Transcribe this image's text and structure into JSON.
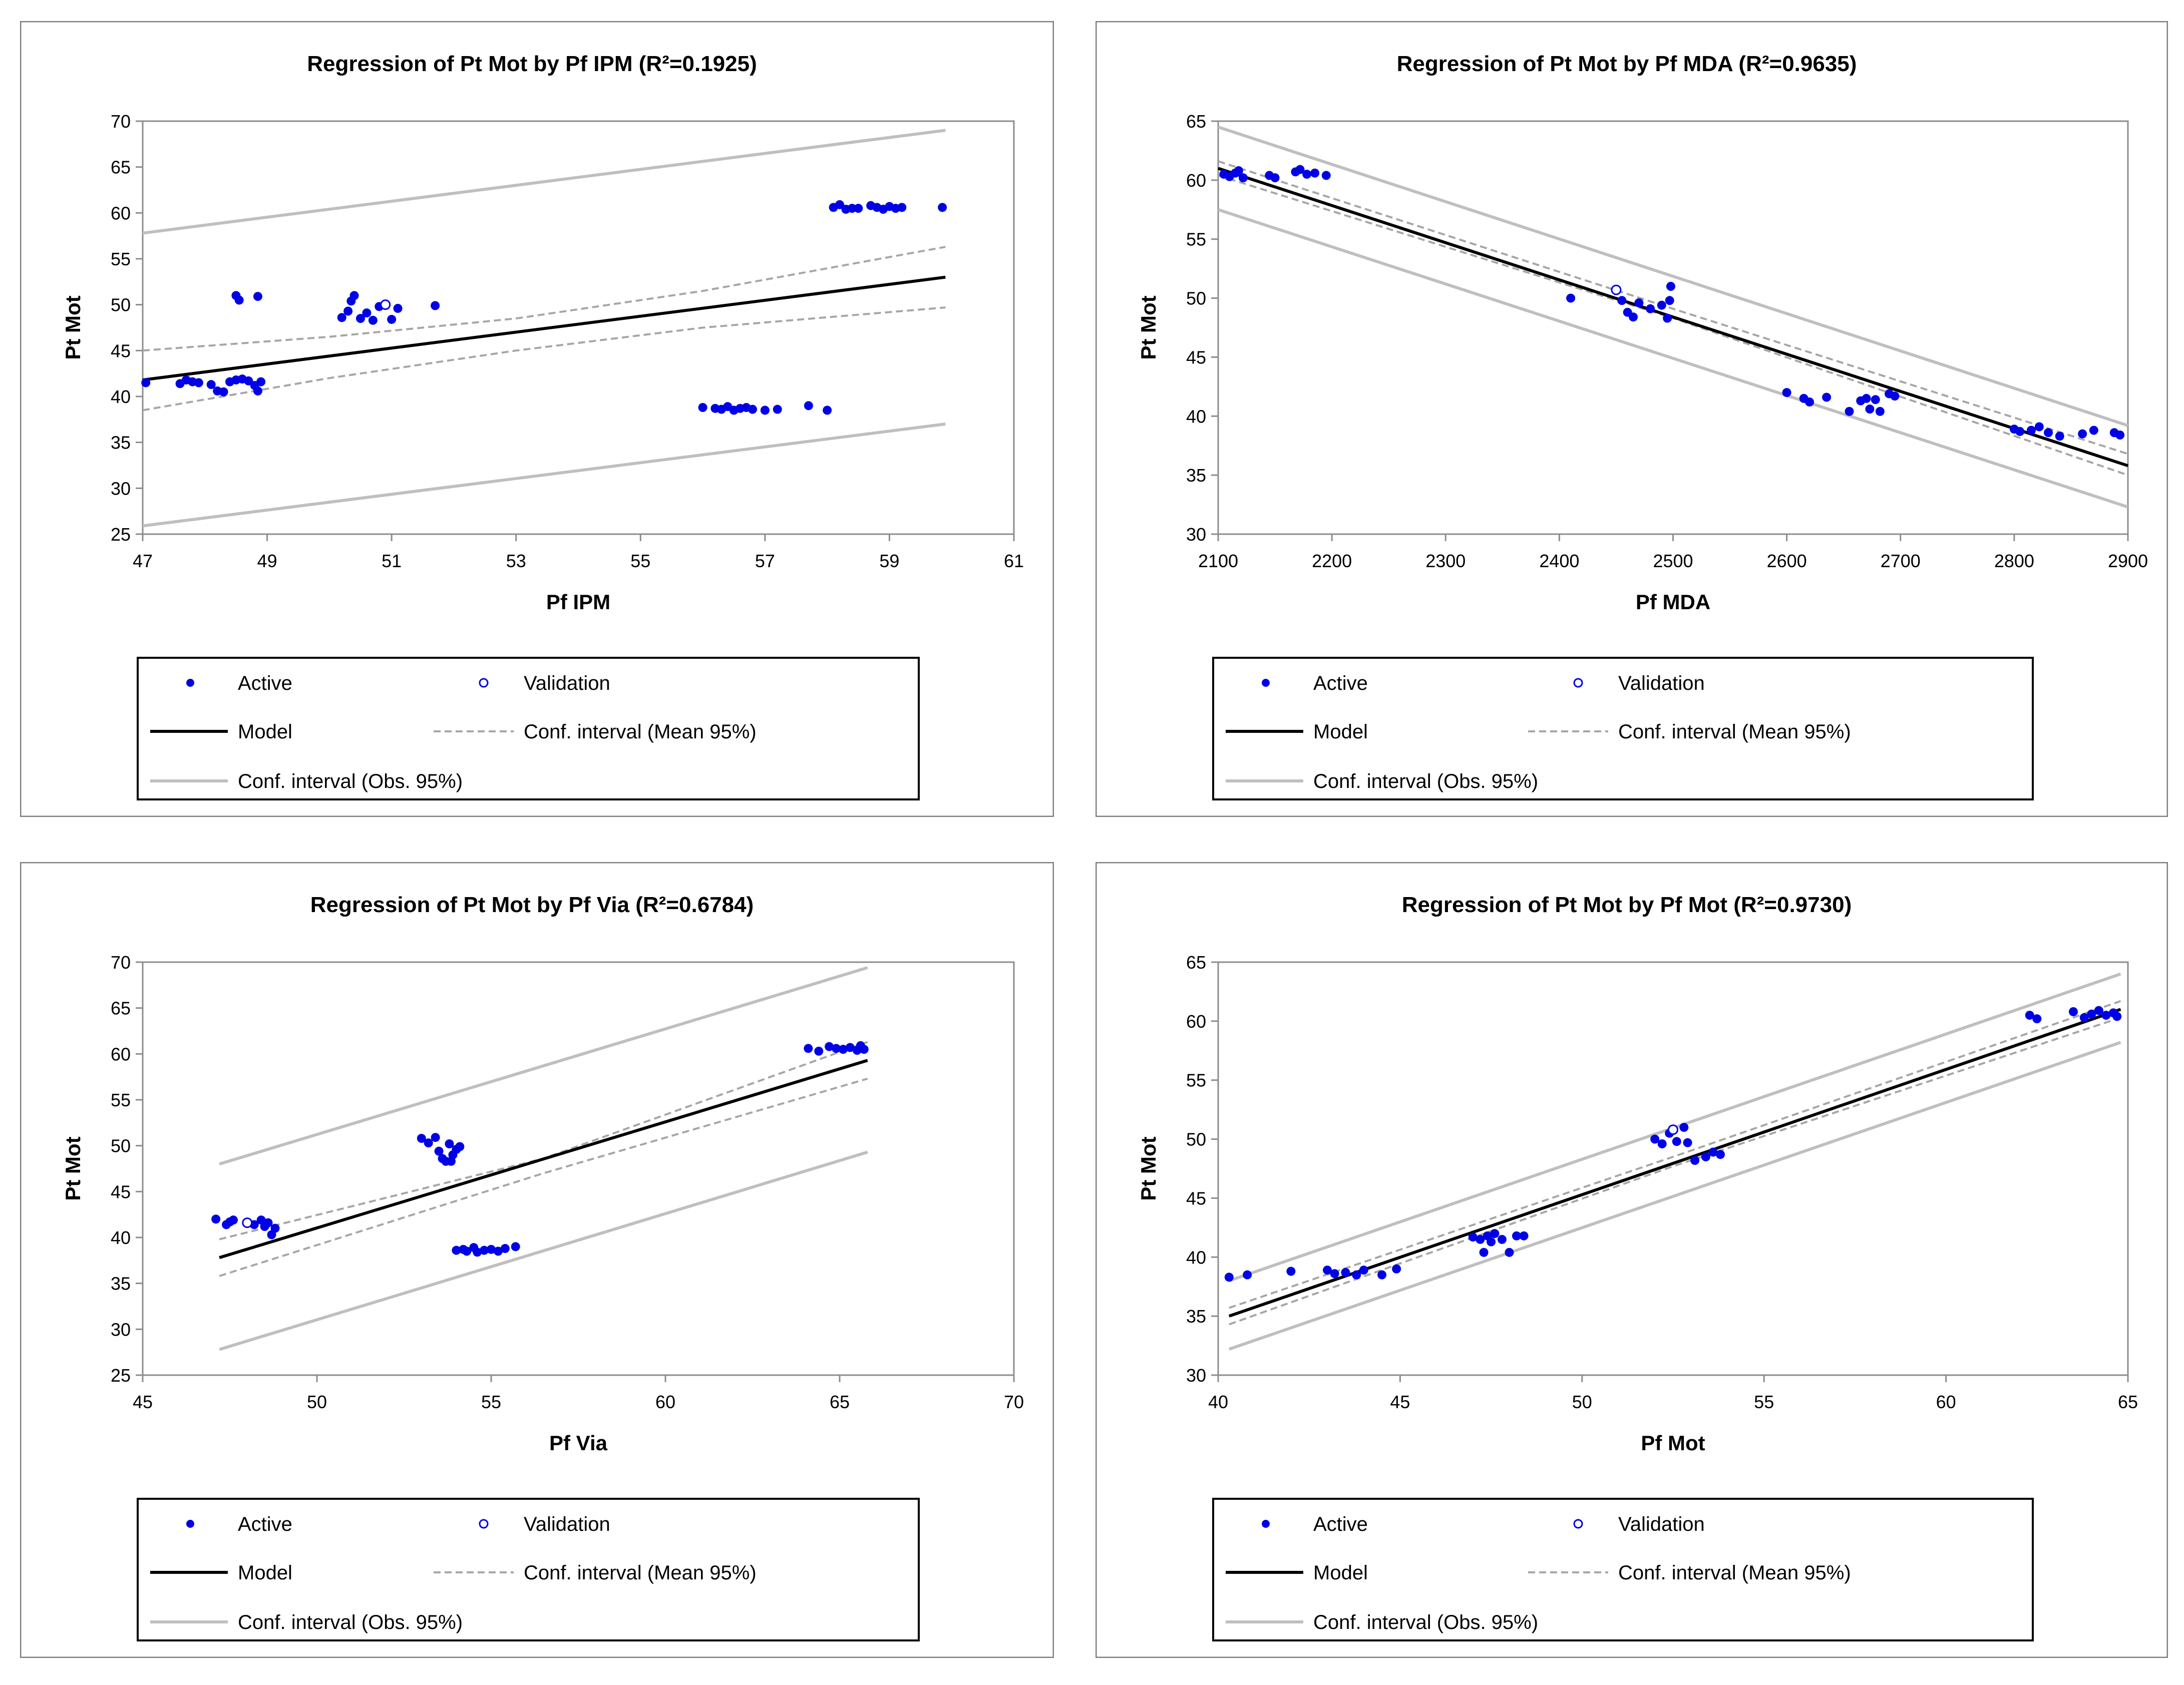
{
  "legend_labels": {
    "active": "Active",
    "validation": "Validation",
    "model": "Model",
    "conf_mean": "Conf. interval (Mean 95%)",
    "conf_obs": "Conf. interval (Obs. 95%)"
  },
  "colors": {
    "active": "#0000e6",
    "model": "#000000",
    "conf_mean": "#a6a6a6",
    "conf_obs": "#bfbfbf",
    "border": "#7f7f7f"
  },
  "chart_data": [
    {
      "type": "scatter",
      "title": "Regression of Pt Mot by Pf IPM (R²=0.1925)",
      "xlabel": "Pf IPM",
      "ylabel": "Pt Mot",
      "xlim": [
        47,
        61
      ],
      "ylim": [
        25,
        70
      ],
      "xticks": [
        47,
        49,
        51,
        53,
        55,
        57,
        59,
        61
      ],
      "yticks": [
        25,
        30,
        35,
        40,
        45,
        50,
        55,
        60,
        65,
        70
      ],
      "active": [
        [
          47.05,
          41.5
        ],
        [
          47.6,
          41.4
        ],
        [
          47.7,
          41.8
        ],
        [
          47.8,
          41.6
        ],
        [
          47.9,
          41.5
        ],
        [
          48.1,
          41.3
        ],
        [
          48.2,
          40.6
        ],
        [
          48.3,
          40.5
        ],
        [
          48.4,
          41.6
        ],
        [
          48.5,
          41.8
        ],
        [
          48.6,
          41.9
        ],
        [
          48.7,
          41.7
        ],
        [
          48.8,
          41.2
        ],
        [
          48.9,
          41.6
        ],
        [
          48.85,
          40.6
        ],
        [
          48.5,
          51.0
        ],
        [
          48.55,
          50.5
        ],
        [
          48.85,
          50.9
        ],
        [
          50.2,
          48.6
        ],
        [
          50.3,
          49.3
        ],
        [
          50.35,
          50.4
        ],
        [
          50.4,
          51.0
        ],
        [
          50.5,
          48.5
        ],
        [
          50.6,
          49.1
        ],
        [
          50.7,
          48.3
        ],
        [
          50.8,
          49.8
        ],
        [
          51.0,
          48.4
        ],
        [
          51.1,
          49.6
        ],
        [
          51.7,
          49.9
        ],
        [
          56.0,
          38.8
        ],
        [
          56.2,
          38.7
        ],
        [
          56.3,
          38.6
        ],
        [
          56.4,
          38.9
        ],
        [
          56.5,
          38.5
        ],
        [
          56.6,
          38.7
        ],
        [
          56.7,
          38.8
        ],
        [
          56.8,
          38.6
        ],
        [
          57.0,
          38.5
        ],
        [
          57.2,
          38.6
        ],
        [
          57.7,
          39.0
        ],
        [
          58.0,
          38.5
        ],
        [
          58.1,
          60.6
        ],
        [
          58.2,
          60.9
        ],
        [
          58.3,
          60.4
        ],
        [
          58.4,
          60.5
        ],
        [
          58.5,
          60.5
        ],
        [
          58.7,
          60.8
        ],
        [
          58.8,
          60.6
        ],
        [
          58.9,
          60.4
        ],
        [
          59.0,
          60.7
        ],
        [
          59.1,
          60.5
        ],
        [
          59.2,
          60.6
        ],
        [
          59.85,
          60.6
        ]
      ],
      "validation": [
        [
          50.9,
          50.0
        ]
      ],
      "model": [
        [
          47.0,
          41.8
        ],
        [
          59.9,
          53.0
        ]
      ],
      "conf_mean_upper": [
        [
          47.0,
          45.0
        ],
        [
          50.0,
          46.5
        ],
        [
          53.0,
          48.5
        ],
        [
          56.0,
          51.5
        ],
        [
          59.9,
          56.3
        ]
      ],
      "conf_mean_lower": [
        [
          47.0,
          38.5
        ],
        [
          50.0,
          42.0
        ],
        [
          53.0,
          45.0
        ],
        [
          56.0,
          47.5
        ],
        [
          59.9,
          49.7
        ]
      ],
      "conf_obs_upper": [
        [
          47.0,
          57.8
        ],
        [
          59.9,
          69.0
        ]
      ],
      "conf_obs_lower": [
        [
          47.0,
          25.9
        ],
        [
          59.9,
          37.0
        ]
      ]
    },
    {
      "type": "scatter",
      "title": "Regression of Pt Mot by Pf MDA (R²=0.9635)",
      "xlabel": "Pf MDA",
      "ylabel": "Pt Mot",
      "xlim": [
        2100,
        2900
      ],
      "ylim": [
        30,
        65
      ],
      "xticks": [
        2100,
        2200,
        2300,
        2400,
        2500,
        2600,
        2700,
        2800,
        2900
      ],
      "yticks": [
        30,
        35,
        40,
        45,
        50,
        55,
        60,
        65
      ],
      "active": [
        [
          2105,
          60.5
        ],
        [
          2110,
          60.3
        ],
        [
          2115,
          60.6
        ],
        [
          2118,
          60.8
        ],
        [
          2122,
          60.2
        ],
        [
          2145,
          60.4
        ],
        [
          2150,
          60.2
        ],
        [
          2168,
          60.7
        ],
        [
          2172,
          60.9
        ],
        [
          2178,
          60.5
        ],
        [
          2185,
          60.6
        ],
        [
          2195,
          60.4
        ],
        [
          2410,
          50.0
        ],
        [
          2455,
          49.8
        ],
        [
          2460,
          48.8
        ],
        [
          2465,
          48.4
        ],
        [
          2470,
          49.6
        ],
        [
          2480,
          49.1
        ],
        [
          2490,
          49.4
        ],
        [
          2495,
          48.3
        ],
        [
          2497,
          49.8
        ],
        [
          2498,
          51.0
        ],
        [
          2600,
          42.0
        ],
        [
          2615,
          41.5
        ],
        [
          2620,
          41.2
        ],
        [
          2635,
          41.6
        ],
        [
          2655,
          40.4
        ],
        [
          2665,
          41.3
        ],
        [
          2670,
          41.5
        ],
        [
          2673,
          40.6
        ],
        [
          2678,
          41.4
        ],
        [
          2682,
          40.4
        ],
        [
          2690,
          41.9
        ],
        [
          2695,
          41.7
        ],
        [
          2800,
          38.9
        ],
        [
          2805,
          38.7
        ],
        [
          2815,
          38.8
        ],
        [
          2822,
          39.1
        ],
        [
          2830,
          38.6
        ],
        [
          2840,
          38.3
        ],
        [
          2860,
          38.5
        ],
        [
          2870,
          38.8
        ],
        [
          2888,
          38.6
        ],
        [
          2893,
          38.4
        ]
      ],
      "validation": [
        [
          2450,
          50.7
        ]
      ],
      "model": [
        [
          2100,
          61.0
        ],
        [
          2900,
          35.8
        ]
      ],
      "conf_mean_upper": [
        [
          2100,
          61.6
        ],
        [
          2500,
          49.1
        ],
        [
          2900,
          36.8
        ]
      ],
      "conf_mean_lower": [
        [
          2100,
          60.4
        ],
        [
          2500,
          48.3
        ],
        [
          2900,
          35.0
        ]
      ],
      "conf_obs_upper": [
        [
          2100,
          64.5
        ],
        [
          2900,
          39.2
        ]
      ],
      "conf_obs_lower": [
        [
          2100,
          57.5
        ],
        [
          2900,
          32.3
        ]
      ]
    },
    {
      "type": "scatter",
      "title": "Regression of Pt Mot by Pf Via (R²=0.6784)",
      "xlabel": "Pf Via",
      "ylabel": "Pt Mot",
      "xlim": [
        45,
        70
      ],
      "ylim": [
        25,
        70
      ],
      "xticks": [
        45,
        50,
        55,
        60,
        65,
        70
      ],
      "yticks": [
        25,
        30,
        35,
        40,
        45,
        50,
        55,
        60,
        65,
        70
      ],
      "active": [
        [
          47.1,
          42.0
        ],
        [
          47.4,
          41.4
        ],
        [
          47.5,
          41.7
        ],
        [
          47.6,
          41.9
        ],
        [
          48.0,
          41.6
        ],
        [
          48.2,
          41.4
        ],
        [
          48.4,
          41.9
        ],
        [
          48.5,
          41.2
        ],
        [
          48.6,
          41.6
        ],
        [
          48.7,
          40.3
        ],
        [
          48.8,
          41.0
        ],
        [
          53.0,
          50.8
        ],
        [
          53.2,
          50.3
        ],
        [
          53.4,
          50.9
        ],
        [
          53.5,
          49.4
        ],
        [
          53.6,
          48.6
        ],
        [
          53.7,
          48.3
        ],
        [
          53.8,
          50.2
        ],
        [
          53.9,
          49.0
        ],
        [
          54.0,
          49.6
        ],
        [
          54.1,
          49.9
        ],
        [
          53.85,
          48.3
        ],
        [
          54.0,
          38.6
        ],
        [
          54.2,
          38.7
        ],
        [
          54.3,
          38.5
        ],
        [
          54.5,
          38.9
        ],
        [
          54.6,
          38.4
        ],
        [
          54.8,
          38.6
        ],
        [
          55.0,
          38.7
        ],
        [
          55.2,
          38.5
        ],
        [
          55.4,
          38.8
        ],
        [
          55.7,
          39.0
        ],
        [
          64.1,
          60.6
        ],
        [
          64.4,
          60.3
        ],
        [
          64.7,
          60.8
        ],
        [
          64.9,
          60.6
        ],
        [
          65.1,
          60.5
        ],
        [
          65.3,
          60.7
        ],
        [
          65.5,
          60.4
        ],
        [
          65.6,
          60.9
        ],
        [
          65.7,
          60.5
        ]
      ],
      "validation": [
        [
          48.0,
          41.6
        ]
      ],
      "model": [
        [
          47.2,
          37.8
        ],
        [
          65.8,
          59.3
        ]
      ],
      "conf_mean_upper": [
        [
          47.2,
          39.8
        ],
        [
          56.5,
          48.6
        ],
        [
          65.8,
          61.3
        ]
      ],
      "conf_mean_lower": [
        [
          47.2,
          35.8
        ],
        [
          56.5,
          47.0
        ],
        [
          65.8,
          57.3
        ]
      ],
      "conf_obs_upper": [
        [
          47.2,
          48.0
        ],
        [
          65.8,
          69.4
        ]
      ],
      "conf_obs_lower": [
        [
          47.2,
          27.8
        ],
        [
          65.8,
          49.3
        ]
      ]
    },
    {
      "type": "scatter",
      "title": "Regression of Pt Mot by Pf Mot (R²=0.9730)",
      "xlabel": "Pf Mot",
      "ylabel": "Pt Mot",
      "xlim": [
        40,
        65
      ],
      "ylim": [
        30,
        65
      ],
      "xticks": [
        40,
        45,
        50,
        55,
        60,
        65
      ],
      "yticks": [
        30,
        35,
        40,
        45,
        50,
        55,
        60,
        65
      ],
      "active": [
        [
          40.3,
          38.3
        ],
        [
          40.8,
          38.5
        ],
        [
          42.0,
          38.8
        ],
        [
          43.0,
          38.9
        ],
        [
          43.2,
          38.6
        ],
        [
          43.5,
          38.7
        ],
        [
          43.8,
          38.5
        ],
        [
          44.0,
          38.9
        ],
        [
          44.5,
          38.5
        ],
        [
          44.9,
          39.0
        ],
        [
          47.0,
          41.7
        ],
        [
          47.2,
          41.5
        ],
        [
          47.3,
          40.4
        ],
        [
          47.4,
          41.8
        ],
        [
          47.5,
          41.3
        ],
        [
          47.6,
          42.0
        ],
        [
          47.8,
          41.5
        ],
        [
          48.0,
          40.4
        ],
        [
          48.2,
          41.8
        ],
        [
          48.4,
          41.8
        ],
        [
          52.0,
          50.0
        ],
        [
          52.2,
          49.6
        ],
        [
          52.4,
          50.5
        ],
        [
          52.6,
          49.8
        ],
        [
          52.8,
          51.0
        ],
        [
          52.9,
          49.7
        ],
        [
          53.1,
          48.2
        ],
        [
          53.4,
          48.5
        ],
        [
          53.6,
          48.9
        ],
        [
          53.8,
          48.7
        ],
        [
          62.3,
          60.5
        ],
        [
          62.5,
          60.2
        ],
        [
          63.5,
          60.8
        ],
        [
          63.8,
          60.3
        ],
        [
          64.0,
          60.6
        ],
        [
          64.2,
          60.9
        ],
        [
          64.4,
          60.5
        ],
        [
          64.6,
          60.7
        ],
        [
          64.7,
          60.4
        ]
      ],
      "validation": [
        [
          52.5,
          50.8
        ]
      ],
      "model": [
        [
          40.3,
          35.0
        ],
        [
          64.8,
          61.0
        ]
      ],
      "conf_mean_upper": [
        [
          40.3,
          35.7
        ],
        [
          52.5,
          48.5
        ],
        [
          64.8,
          61.7
        ]
      ],
      "conf_mean_lower": [
        [
          40.3,
          34.3
        ],
        [
          52.5,
          47.7
        ],
        [
          64.8,
          60.3
        ]
      ],
      "conf_obs_upper": [
        [
          40.3,
          38.0
        ],
        [
          64.8,
          64.0
        ]
      ],
      "conf_obs_lower": [
        [
          40.3,
          32.2
        ],
        [
          64.8,
          58.2
        ]
      ]
    }
  ]
}
